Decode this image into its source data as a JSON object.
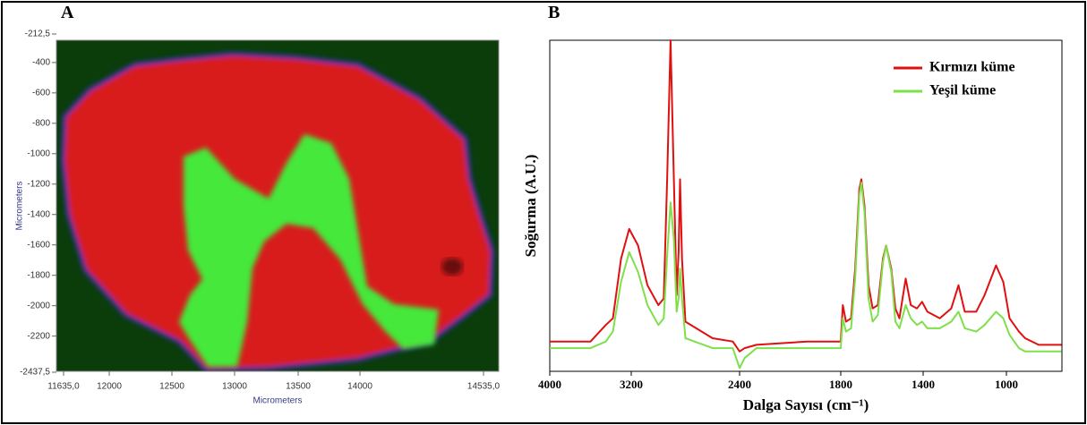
{
  "chart_data": [
    {
      "type": "image",
      "label": "A",
      "xlabel": "Micrometers",
      "ylabel": "Micrometers",
      "xlim": [
        11635,
        14535
      ],
      "ylim": [
        -212.5,
        -2437.5
      ],
      "xticks": [
        {
          "value": 11635,
          "label": "11635,0"
        },
        12000,
        12500,
        13000,
        13500,
        14000,
        {
          "value": 14535,
          "label": "14535,0"
        }
      ],
      "yticks": [
        {
          "value": -212.5,
          "label": "-212,5"
        },
        -400,
        -600,
        -800,
        -1000,
        -1200,
        -1400,
        -1600,
        -1800,
        -2000,
        -2200,
        {
          "value": -2437.5,
          "label": "-2437,5"
        }
      ]
    },
    {
      "type": "line",
      "label": "B",
      "xlabel": "Dalga Sayısı (cm⁻¹)",
      "ylabel": "Soğurma (A.U.)",
      "xlim": [
        4000,
        735
      ],
      "ylim": [
        0,
        1
      ],
      "xticks": [
        4000,
        3200,
        2400,
        1800,
        1400,
        1000
      ],
      "legend": "upper right",
      "x": [
        4000,
        3800,
        3600,
        3450,
        3380,
        3300,
        3220,
        3150,
        3080,
        3000,
        2960,
        2935,
        2910,
        2885,
        2865,
        2850,
        2840,
        2825,
        2800,
        2600,
        2450,
        2400,
        2370,
        2300,
        2000,
        1800,
        1790,
        1775,
        1750,
        1730,
        1710,
        1700,
        1685,
        1665,
        1645,
        1620,
        1595,
        1580,
        1555,
        1535,
        1515,
        1485,
        1460,
        1430,
        1405,
        1380,
        1320,
        1265,
        1230,
        1200,
        1145,
        1105,
        1050,
        1015,
        985,
        940,
        910,
        845,
        735
      ],
      "series": [
        {
          "name": "Kırmızı küme",
          "color": "#e01010",
          "values": [
            0.09,
            0.09,
            0.09,
            0.14,
            0.16,
            0.34,
            0.43,
            0.38,
            0.26,
            0.2,
            0.22,
            0.58,
            1.0,
            0.58,
            0.23,
            0.36,
            0.58,
            0.34,
            0.15,
            0.1,
            0.09,
            0.06,
            0.07,
            0.08,
            0.09,
            0.09,
            0.2,
            0.15,
            0.16,
            0.31,
            0.55,
            0.58,
            0.5,
            0.26,
            0.19,
            0.2,
            0.34,
            0.38,
            0.31,
            0.19,
            0.16,
            0.28,
            0.2,
            0.19,
            0.21,
            0.18,
            0.16,
            0.19,
            0.26,
            0.18,
            0.18,
            0.23,
            0.32,
            0.27,
            0.16,
            0.12,
            0.1,
            0.08,
            0.08
          ]
        },
        {
          "name": "Yeşil küme",
          "color": "#7ee04a",
          "values": [
            0.07,
            0.07,
            0.07,
            0.09,
            0.12,
            0.27,
            0.36,
            0.3,
            0.2,
            0.14,
            0.16,
            0.35,
            0.51,
            0.4,
            0.18,
            0.22,
            0.31,
            0.22,
            0.1,
            0.07,
            0.07,
            0.01,
            0.04,
            0.07,
            0.07,
            0.07,
            0.16,
            0.12,
            0.13,
            0.28,
            0.53,
            0.57,
            0.48,
            0.22,
            0.15,
            0.17,
            0.33,
            0.38,
            0.3,
            0.15,
            0.13,
            0.2,
            0.16,
            0.14,
            0.15,
            0.13,
            0.13,
            0.15,
            0.18,
            0.13,
            0.12,
            0.14,
            0.18,
            0.16,
            0.11,
            0.07,
            0.06,
            0.06,
            0.06
          ]
        }
      ]
    }
  ]
}
